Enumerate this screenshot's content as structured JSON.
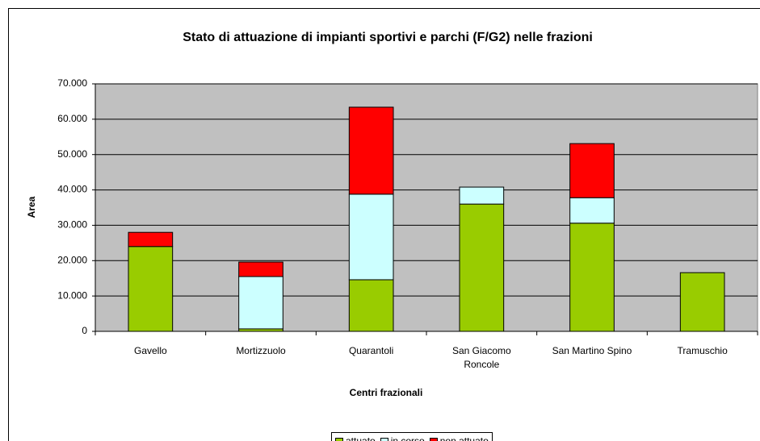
{
  "chart_data": {
    "type": "stacked_bar",
    "title": "Stato di attuazione di impianti sportivi e parchi (F/G2) nelle frazioni",
    "x_label": "Centri frazionali",
    "y_label": "Area",
    "categories": [
      "Gavello",
      "Mortizzuolo",
      "Quarantoli",
      "San Giacomo Roncole",
      "San Martino Spino",
      "Tramuschio"
    ],
    "series": [
      {
        "name": "attuato",
        "color": "#99cc00",
        "values": [
          24000,
          700,
          14600,
          36000,
          30600,
          16600
        ]
      },
      {
        "name": "in corso",
        "color": "#ccffff",
        "values": [
          0,
          14800,
          24200,
          4800,
          7200,
          0
        ]
      },
      {
        "name": "non attuato",
        "color": "#ff0000",
        "values": [
          4000,
          4100,
          24600,
          0,
          15300,
          0
        ]
      }
    ],
    "ylim": [
      0,
      70000
    ],
    "yticks": [
      0,
      {
        "value": 10000,
        "label": "10.000"
      },
      {
        "value": 20000,
        "label": "20.000"
      },
      {
        "value": 30000,
        "label": "30.000"
      },
      {
        "value": 40000,
        "label": "40.000"
      },
      {
        "value": 50000,
        "label": "50.000"
      },
      {
        "value": 60000,
        "label": "60.000"
      },
      {
        "value": 70000,
        "label": "70.000"
      }
    ],
    "grid": true,
    "legend": "bottom"
  }
}
